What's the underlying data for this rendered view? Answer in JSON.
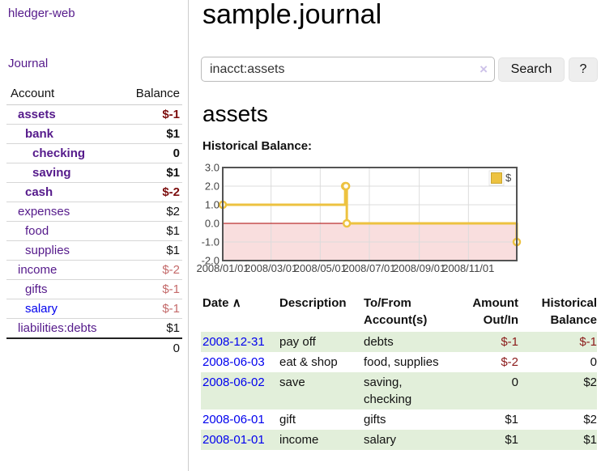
{
  "colors": {
    "purple_link": "#551a8b",
    "blue_link": "#0000ee",
    "negative": "#8b1a1a",
    "negative_bold": "#7c0e0e",
    "negative_light": "#c46a6a",
    "stripe_green": "#e2efda"
  },
  "app": {
    "brand": "hledger-web",
    "nav_journal": "Journal"
  },
  "sidebar": {
    "col_account": "Account",
    "col_balance": "Balance",
    "accounts": [
      {
        "name": "assets",
        "balance": "$-1",
        "depth": 1,
        "bold": true,
        "balance_style": "neg-bold"
      },
      {
        "name": "bank",
        "balance": "$1",
        "depth": 2,
        "bold": true,
        "balance_style": "bold"
      },
      {
        "name": "checking",
        "balance": "0",
        "depth": 3,
        "bold": true,
        "balance_style": "bold"
      },
      {
        "name": "saving",
        "balance": "$1",
        "depth": 3,
        "bold": true,
        "balance_style": "bold"
      },
      {
        "name": "cash",
        "balance": "$-2",
        "depth": 2,
        "bold": true,
        "balance_style": "neg-bold"
      },
      {
        "name": "expenses",
        "balance": "$2",
        "depth": 1,
        "bold": false,
        "balance_style": "plain"
      },
      {
        "name": "food",
        "balance": "$1",
        "depth": 2,
        "bold": false,
        "balance_style": "plain"
      },
      {
        "name": "supplies",
        "balance": "$1",
        "depth": 2,
        "bold": false,
        "balance_style": "plain"
      },
      {
        "name": "income",
        "balance": "$-2",
        "depth": 1,
        "bold": false,
        "balance_style": "neg-light"
      },
      {
        "name": "gifts",
        "balance": "$-1",
        "depth": 2,
        "bold": false,
        "balance_style": "neg-light"
      },
      {
        "name": "salary",
        "balance": "$-1",
        "depth": 2,
        "bold": false,
        "balance_style": "neg-light",
        "link_color": "blue"
      },
      {
        "name": "liabilities:debts",
        "balance": "$1",
        "depth": 1,
        "bold": false,
        "balance_style": "plain"
      }
    ],
    "total": "0"
  },
  "header": {
    "title": "sample.journal"
  },
  "search": {
    "value": "inacct:assets",
    "clear_icon": "×",
    "search_button": "Search",
    "help_button": "?"
  },
  "section": {
    "title": "assets",
    "chart_heading": "Historical Balance:"
  },
  "chart_data": {
    "type": "line",
    "step": true,
    "title": "Historical Balance",
    "series": [
      {
        "name": "$",
        "color": "#edc240",
        "points": [
          {
            "date": "2008-01-01",
            "value": 1
          },
          {
            "date": "2008-06-01",
            "value": 2
          },
          {
            "date": "2008-06-02",
            "value": 2
          },
          {
            "date": "2008-06-03",
            "value": 0
          },
          {
            "date": "2008-12-31",
            "value": -1
          }
        ]
      }
    ],
    "xlim": [
      "2008-01-01",
      "2008-12-31"
    ],
    "ylim": [
      -2,
      3
    ],
    "yticks": [
      {
        "label": "3.0",
        "value": 3
      },
      {
        "label": "2.0",
        "value": 2
      },
      {
        "label": "1.0",
        "value": 1
      },
      {
        "label": "0.0",
        "value": 0
      },
      {
        "label": "-1.0",
        "value": -1
      },
      {
        "label": "-2.0",
        "value": -2
      }
    ],
    "xticks": [
      {
        "label": "2008/01/01",
        "date": "2008-01-01"
      },
      {
        "label": "2008/03/01",
        "date": "2008-03-01"
      },
      {
        "label": "2008/05/01",
        "date": "2008-05-01"
      },
      {
        "label": "2008/07/01",
        "date": "2008-07-01"
      },
      {
        "label": "2008/09/01",
        "date": "2008-09-01"
      },
      {
        "label": "2008/11/01",
        "date": "2008-11-01"
      }
    ],
    "legend": {
      "label": "$",
      "position": "top-right"
    },
    "grid": true,
    "negative_fill": "#f9dede",
    "zero_line_color": "#aa0000",
    "border_color": "#545454",
    "grid_color": "#dcdcdc"
  },
  "register": {
    "headers": {
      "date": "Date",
      "sort_icon": "∧",
      "description": "Description",
      "accounts": "To/From Account(s)",
      "amount": "Amount Out/In",
      "balance": "Historical Balance"
    },
    "rows": [
      {
        "date": "2008-12-31",
        "description": "pay off",
        "accounts": "debts",
        "amount": "$-1",
        "balance": "$-1",
        "amount_neg": true,
        "balance_neg": true
      },
      {
        "date": "2008-06-03",
        "description": "eat & shop",
        "accounts": "food, supplies",
        "amount": "$-2",
        "balance": "0",
        "amount_neg": true,
        "balance_neg": false
      },
      {
        "date": "2008-06-02",
        "description": "save",
        "accounts": "saving, checking",
        "amount": "0",
        "balance": "$2",
        "amount_neg": false,
        "balance_neg": false
      },
      {
        "date": "2008-06-01",
        "description": "gift",
        "accounts": "gifts",
        "amount": "$1",
        "balance": "$2",
        "amount_neg": false,
        "balance_neg": false
      },
      {
        "date": "2008-01-01",
        "description": "income",
        "accounts": "salary",
        "amount": "$1",
        "balance": "$1",
        "amount_neg": false,
        "balance_neg": false
      }
    ]
  }
}
